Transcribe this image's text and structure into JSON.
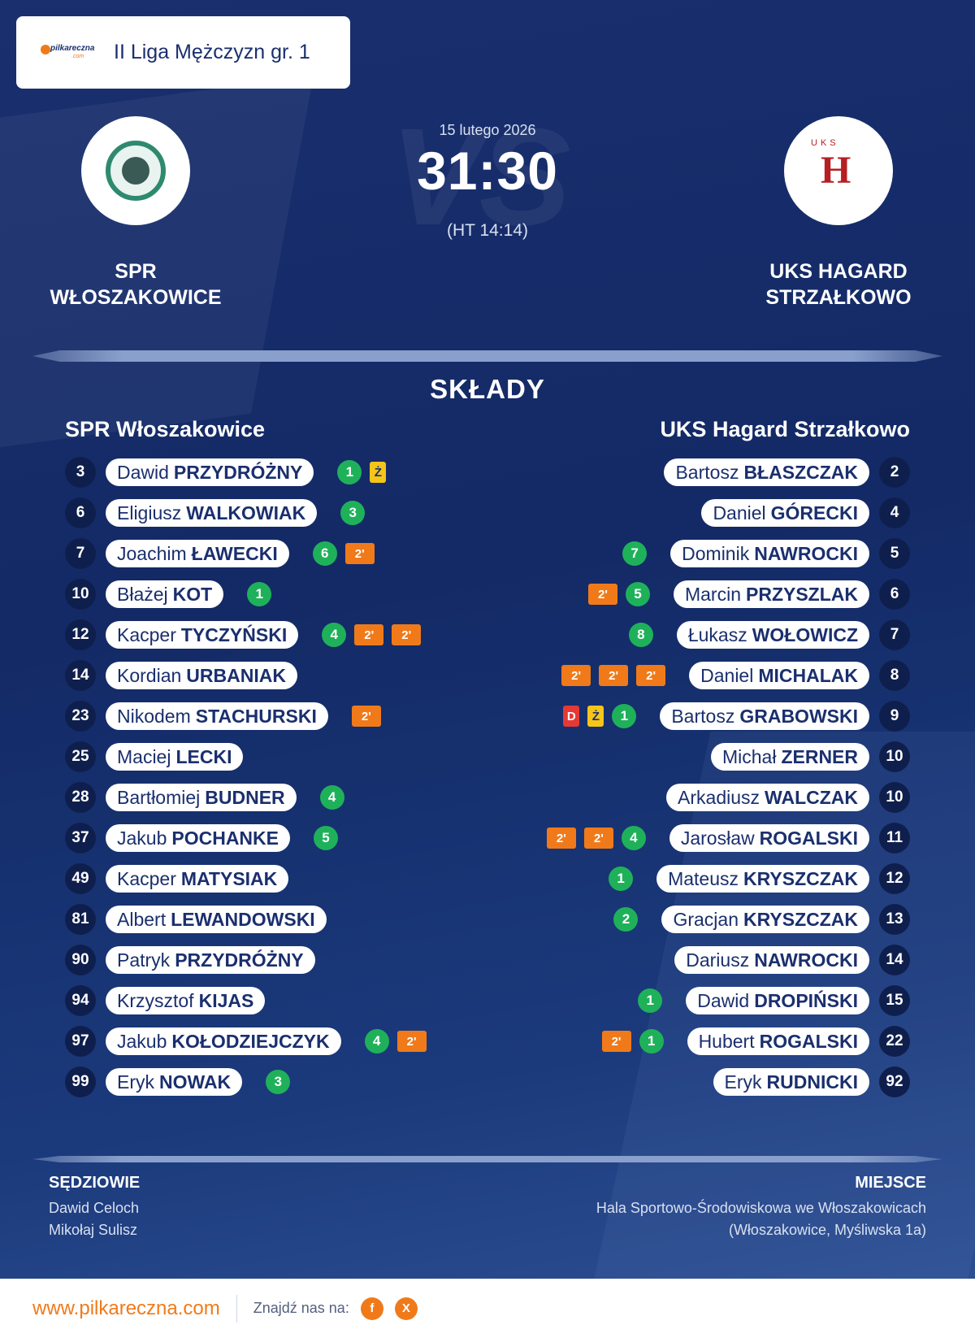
{
  "league": {
    "name": "II Liga Mężczyzn gr. 1",
    "brand": "pilkareczna",
    "brand_sub": ".com"
  },
  "match": {
    "date": "15 lutego 2026",
    "score": "31:30",
    "halftime": "(HT 14:14)",
    "watermark": "VS"
  },
  "home": {
    "name_line1": "SPR",
    "name_line2": "WŁOSZAKOWICE",
    "squad_title": "SPR Włoszakowice",
    "players": [
      {
        "num": "3",
        "first": "Dawid",
        "last": "PRZYDRÓŻNY",
        "events": [
          {
            "t": "goals",
            "v": "1"
          },
          {
            "t": "y",
            "v": "Ż"
          }
        ]
      },
      {
        "num": "6",
        "first": "Eligiusz",
        "last": "WALKOWIAK",
        "events": [
          {
            "t": "goals",
            "v": "3"
          }
        ]
      },
      {
        "num": "7",
        "first": "Joachim",
        "last": "ŁAWECKI",
        "events": [
          {
            "t": "goals",
            "v": "6"
          },
          {
            "t": "two",
            "v": "2'"
          }
        ]
      },
      {
        "num": "10",
        "first": "Błażej",
        "last": "KOT",
        "events": [
          {
            "t": "goals",
            "v": "1"
          }
        ]
      },
      {
        "num": "12",
        "first": "Kacper",
        "last": "TYCZYŃSKI",
        "events": [
          {
            "t": "goals",
            "v": "4"
          },
          {
            "t": "two",
            "v": "2'"
          },
          {
            "t": "two",
            "v": "2'"
          }
        ]
      },
      {
        "num": "14",
        "first": "Kordian",
        "last": "URBANIAK",
        "events": []
      },
      {
        "num": "23",
        "first": "Nikodem",
        "last": "STACHURSKI",
        "events": [
          {
            "t": "two",
            "v": "2'"
          }
        ]
      },
      {
        "num": "25",
        "first": "Maciej",
        "last": "LECKI",
        "events": []
      },
      {
        "num": "28",
        "first": "Bartłomiej",
        "last": "BUDNER",
        "events": [
          {
            "t": "goals",
            "v": "4"
          }
        ]
      },
      {
        "num": "37",
        "first": "Jakub",
        "last": "POCHANKE",
        "events": [
          {
            "t": "goals",
            "v": "5"
          }
        ]
      },
      {
        "num": "49",
        "first": "Kacper",
        "last": "MATYSIAK",
        "events": []
      },
      {
        "num": "81",
        "first": "Albert",
        "last": "LEWANDOWSKI",
        "events": []
      },
      {
        "num": "90",
        "first": "Patryk",
        "last": "PRZYDRÓŻNY",
        "events": []
      },
      {
        "num": "94",
        "first": "Krzysztof",
        "last": "KIJAS",
        "events": []
      },
      {
        "num": "97",
        "first": "Jakub",
        "last": "KOŁODZIEJCZYK",
        "events": [
          {
            "t": "goals",
            "v": "4"
          },
          {
            "t": "two",
            "v": "2'"
          }
        ]
      },
      {
        "num": "99",
        "first": "Eryk",
        "last": "NOWAK",
        "events": [
          {
            "t": "goals",
            "v": "3"
          }
        ]
      }
    ]
  },
  "away": {
    "name_line1": "UKS HAGARD",
    "name_line2": "STRZAŁKOWO",
    "squad_title": "UKS Hagard Strzałkowo",
    "crest_letter": "H",
    "crest_top": "UKS",
    "players": [
      {
        "num": "2",
        "first": "Bartosz",
        "last": "BŁASZCZAK",
        "events": []
      },
      {
        "num": "4",
        "first": "Daniel",
        "last": "GÓRECKI",
        "events": []
      },
      {
        "num": "5",
        "first": "Dominik",
        "last": "NAWROCKI",
        "events": [
          {
            "t": "goals",
            "v": "7"
          }
        ]
      },
      {
        "num": "6",
        "first": "Marcin",
        "last": "PRZYSZLAK",
        "events": [
          {
            "t": "goals",
            "v": "5"
          },
          {
            "t": "two",
            "v": "2'"
          }
        ]
      },
      {
        "num": "7",
        "first": "Łukasz",
        "last": "WOŁOWICZ",
        "events": [
          {
            "t": "goals",
            "v": "8"
          }
        ]
      },
      {
        "num": "8",
        "first": "Daniel",
        "last": "MICHALAK",
        "events": [
          {
            "t": "two",
            "v": "2'"
          },
          {
            "t": "two",
            "v": "2'"
          },
          {
            "t": "two",
            "v": "2'"
          }
        ]
      },
      {
        "num": "9",
        "first": "Bartosz",
        "last": "GRABOWSKI",
        "events": [
          {
            "t": "goals",
            "v": "1"
          },
          {
            "t": "y",
            "v": "Ż"
          },
          {
            "t": "r",
            "v": "D"
          }
        ]
      },
      {
        "num": "10",
        "first": "Michał",
        "last": "ZERNER",
        "events": []
      },
      {
        "num": "10",
        "first": "Arkadiusz",
        "last": "WALCZAK",
        "events": []
      },
      {
        "num": "11",
        "first": "Jarosław",
        "last": "ROGALSKI",
        "events": [
          {
            "t": "goals",
            "v": "4"
          },
          {
            "t": "two",
            "v": "2'"
          },
          {
            "t": "two",
            "v": "2'"
          }
        ]
      },
      {
        "num": "12",
        "first": "Mateusz",
        "last": "KRYSZCZAK",
        "events": [
          {
            "t": "goals",
            "v": "1"
          }
        ]
      },
      {
        "num": "13",
        "first": "Gracjan",
        "last": "KRYSZCZAK",
        "events": [
          {
            "t": "goals",
            "v": "2"
          }
        ]
      },
      {
        "num": "14",
        "first": "Dariusz",
        "last": "NAWROCKI",
        "events": []
      },
      {
        "num": "15",
        "first": "Dawid",
        "last": "DROPIŃSKI",
        "events": [
          {
            "t": "goals",
            "v": "1"
          }
        ]
      },
      {
        "num": "22",
        "first": "Hubert",
        "last": "ROGALSKI",
        "events": [
          {
            "t": "goals",
            "v": "1"
          },
          {
            "t": "two",
            "v": "2'"
          }
        ]
      },
      {
        "num": "92",
        "first": "Eryk",
        "last": "RUDNICKI",
        "events": []
      }
    ]
  },
  "section_title": "SKŁADY",
  "referees": {
    "label": "SĘDZIOWIE",
    "names": [
      "Dawid Celoch",
      "Mikołaj Sulisz"
    ]
  },
  "venue": {
    "label": "MIEJSCE",
    "line1": "Hala Sportowo-Środowiskowa we Włoszakowicach",
    "line2": "(Włoszakowice, Myśliwska 1a)"
  },
  "footer": {
    "site": "www.pilkareczna.com",
    "find_us": "Znajdź nas na:",
    "social": [
      "f",
      "X"
    ]
  },
  "colors": {
    "navy": "#1a2f6e",
    "orange": "#f07a1a",
    "green": "#1fb15a",
    "yellow": "#f5c518",
    "red": "#e53935"
  }
}
